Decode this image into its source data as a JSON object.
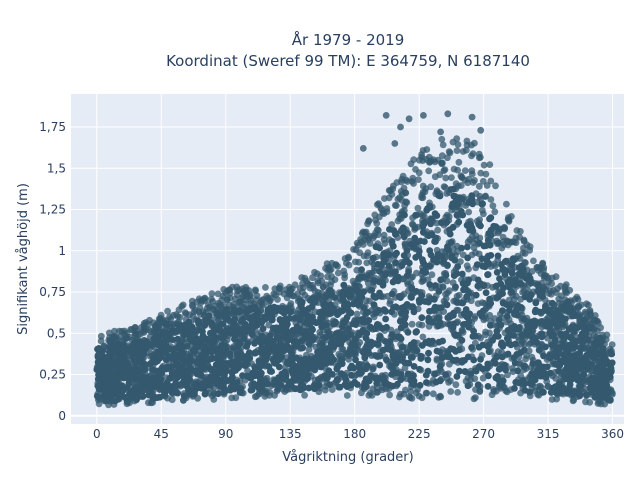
{
  "chart_data": {
    "type": "scatter",
    "title": "År 1979 - 2019",
    "subtitle": "Koordinat (Sweref 99 TM): E 364759, N 6187140",
    "xlabel": "Vågriktning (grader)",
    "ylabel": "Signifikant våghöjd (m)",
    "xlim": [
      -18,
      368
    ],
    "ylim": [
      -0.05,
      1.95
    ],
    "x_ticks": [
      0,
      45,
      90,
      135,
      180,
      225,
      270,
      315,
      360
    ],
    "x_tick_labels": [
      "0",
      "45",
      "90",
      "135",
      "180",
      "225",
      "270",
      "315",
      "360"
    ],
    "y_ticks": [
      0,
      0.25,
      0.5,
      0.75,
      1,
      1.25,
      1.5,
      1.75
    ],
    "y_tick_labels": [
      "0",
      "0,25",
      "0,5",
      "0,75",
      "1",
      "1,25",
      "1,5",
      "1,75"
    ],
    "grid": true,
    "marker_color": "#34586e",
    "plot_background": "#e5ecf6",
    "envelope": {
      "direction": [
        0,
        20,
        45,
        90,
        135,
        160,
        180,
        200,
        225,
        250,
        270,
        290,
        315,
        340,
        360
      ],
      "min_height": [
        0.06,
        0.07,
        0.08,
        0.1,
        0.12,
        0.12,
        0.12,
        0.11,
        0.1,
        0.1,
        0.1,
        0.1,
        0.09,
        0.08,
        0.06
      ],
      "max_height": [
        0.5,
        0.52,
        0.62,
        0.78,
        0.8,
        0.92,
        1.02,
        1.35,
        1.6,
        1.72,
        1.62,
        1.2,
        0.88,
        0.72,
        0.45
      ]
    },
    "extreme_points": [
      {
        "x": 202,
        "y": 1.82
      },
      {
        "x": 212,
        "y": 1.75
      },
      {
        "x": 218,
        "y": 1.8
      },
      {
        "x": 228,
        "y": 1.82
      },
      {
        "x": 245,
        "y": 1.83
      },
      {
        "x": 262,
        "y": 1.81
      },
      {
        "x": 268,
        "y": 1.73
      },
      {
        "x": 186,
        "y": 1.62
      },
      {
        "x": 240,
        "y": 1.72
      },
      {
        "x": 208,
        "y": 1.65
      }
    ]
  }
}
